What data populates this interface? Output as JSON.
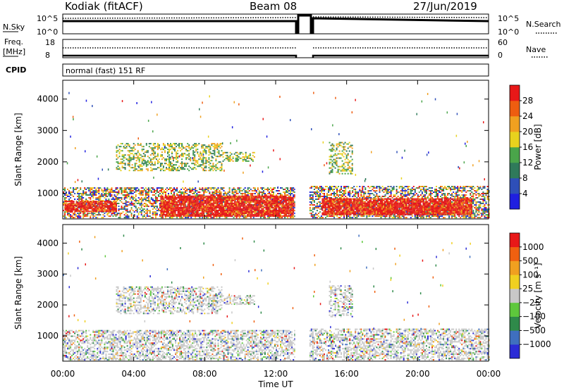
{
  "header": {
    "title": "Kodiak (fitACF)",
    "beam": "Beam 08",
    "date": "27/Jun/2019"
  },
  "status_strip": {
    "left_label_top": "N.Sky",
    "left_tick_top": "10^5",
    "left_tick_bottom": "10^0",
    "right_tick_top": "10^5",
    "right_tick_bottom": "10^0",
    "right_label": "N.Search",
    "freq_label_1": "Freq.",
    "freq_label_2": "[MHz]",
    "freq_tick_top": "18",
    "freq_tick_bottom": "8",
    "nave_tick_top": "60",
    "nave_tick_bottom": "0",
    "nave_label": "Nave",
    "cpid_label": "CPID",
    "cpid_value": "normal (fast) 151 RF"
  },
  "chart_data": [
    {
      "type": "heatmap",
      "name": "power",
      "xlabel": "",
      "ylabel": "Slant Range [km]",
      "x_ticks": [
        "00:00",
        "04:00",
        "08:00",
        "12:00",
        "16:00",
        "20:00",
        "00:00"
      ],
      "xlim": [
        0,
        24
      ],
      "ylim": [
        180,
        4600
      ],
      "y_ticks": [
        1000,
        2000,
        3000,
        4000
      ],
      "data_gap_hours": [
        13.1,
        13.9
      ],
      "colorbar": {
        "label": "Power [dB]",
        "ticks": [
          "4",
          "8",
          "12",
          "16",
          "20",
          "24",
          "28"
        ],
        "colors": [
          "#1f1fe0",
          "#2e4fb8",
          "#2f7a5a",
          "#4aa54a",
          "#e8d21e",
          "#f0a020",
          "#ee5d10",
          "#e81818"
        ]
      },
      "echo_regions": [
        {
          "t0": 0.0,
          "t1": 13.1,
          "r0": 200,
          "r1": 1150,
          "level": "mixed"
        },
        {
          "t0": 0.1,
          "t1": 3.0,
          "r0": 400,
          "r1": 750,
          "level": "high"
        },
        {
          "t0": 5.5,
          "t1": 13.0,
          "r0": 250,
          "r1": 900,
          "level": "high"
        },
        {
          "t0": 3.0,
          "t1": 9.0,
          "r0": 1700,
          "r1": 2600,
          "level": "mid"
        },
        {
          "t0": 9.0,
          "t1": 10.8,
          "r0": 2000,
          "r1": 2300,
          "level": "mid"
        },
        {
          "t0": 13.9,
          "t1": 24.0,
          "r0": 200,
          "r1": 1200,
          "level": "mixed"
        },
        {
          "t0": 14.6,
          "t1": 23.0,
          "r0": 300,
          "r1": 800,
          "level": "high"
        },
        {
          "t0": 15.0,
          "t1": 16.3,
          "r0": 1600,
          "r1": 2600,
          "level": "mid"
        }
      ]
    },
    {
      "type": "heatmap",
      "name": "velocity",
      "xlabel": "Time UT",
      "ylabel": "Slant Range [km]",
      "x_ticks": [
        "00:00",
        "04:00",
        "08:00",
        "12:00",
        "16:00",
        "20:00",
        "00:00"
      ],
      "xlim": [
        0,
        24
      ],
      "ylim": [
        180,
        4600
      ],
      "y_ticks": [
        1000,
        2000,
        3000,
        4000
      ],
      "data_gap_hours": [
        13.1,
        13.9
      ],
      "colorbar": {
        "label": "Velocity [m s⁻¹]",
        "ticks": [
          "1000",
          "500",
          "100",
          "25",
          "−25",
          "−100",
          "−500",
          "−1000"
        ],
        "colors": [
          "#2b2bd6",
          "#3f6fbf",
          "#2f8a4a",
          "#5ec83c",
          "#c8c8c8",
          "#f0d020",
          "#f0a020",
          "#f06010",
          "#e81818"
        ]
      },
      "echo_regions": [
        {
          "t0": 0.0,
          "t1": 13.1,
          "r0": 200,
          "r1": 1150,
          "level": "mixed"
        },
        {
          "t0": 3.0,
          "t1": 9.0,
          "r0": 1700,
          "r1": 2600,
          "level": "mid"
        },
        {
          "t0": 9.0,
          "t1": 10.8,
          "r0": 2000,
          "r1": 2300,
          "level": "mid"
        },
        {
          "t0": 13.9,
          "t1": 24.0,
          "r0": 200,
          "r1": 1200,
          "level": "mixed"
        },
        {
          "t0": 15.0,
          "t1": 16.3,
          "r0": 1600,
          "r1": 2600,
          "level": "mid"
        }
      ]
    }
  ]
}
